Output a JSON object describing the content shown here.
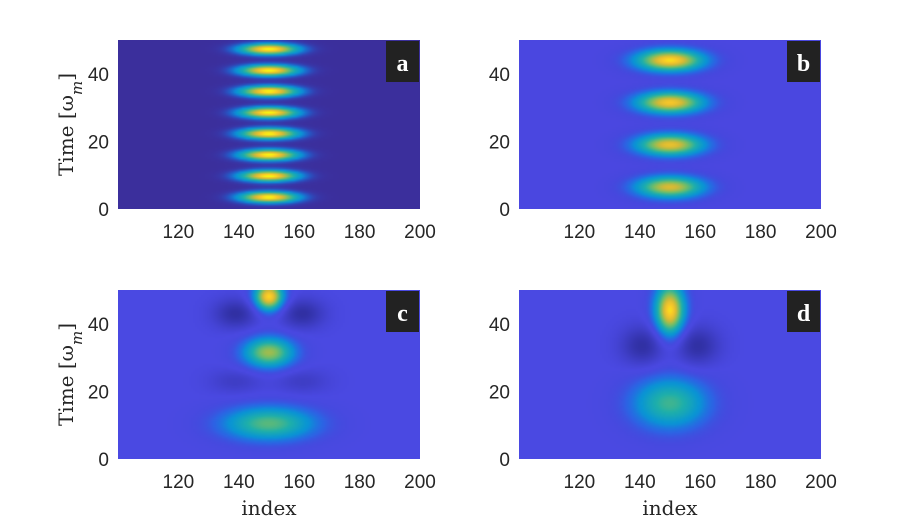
{
  "chart_data": [
    {
      "type": "heatmap",
      "panel_label": "a",
      "xlabel": "",
      "ylabel": "Time [ω",
      "ylabel_sub": "m",
      "ylabel_close": "]",
      "xlim": [
        100,
        200
      ],
      "ylim": [
        0,
        50
      ],
      "xticks": [
        120,
        140,
        160,
        180,
        200
      ],
      "yticks": [
        0,
        20,
        40
      ],
      "colormap": "parula",
      "background_color": "#3b2f9c",
      "features": [
        {
          "x": 150,
          "y": 3.5,
          "sx": 7,
          "sy": 1.2,
          "amp": 1.0
        },
        {
          "x": 150,
          "y": 9.8,
          "sx": 7,
          "sy": 1.2,
          "amp": 1.0
        },
        {
          "x": 150,
          "y": 16.0,
          "sx": 7,
          "sy": 1.2,
          "amp": 1.0
        },
        {
          "x": 150,
          "y": 22.3,
          "sx": 7,
          "sy": 1.2,
          "amp": 1.0
        },
        {
          "x": 150,
          "y": 28.5,
          "sx": 7,
          "sy": 1.2,
          "amp": 1.0
        },
        {
          "x": 150,
          "y": 34.8,
          "sx": 7,
          "sy": 1.2,
          "amp": 1.0
        },
        {
          "x": 150,
          "y": 41.0,
          "sx": 7,
          "sy": 1.2,
          "amp": 1.0
        },
        {
          "x": 150,
          "y": 47.3,
          "sx": 7,
          "sy": 1.2,
          "amp": 1.0
        }
      ]
    },
    {
      "type": "heatmap",
      "panel_label": "b",
      "xlabel": "",
      "ylabel": "",
      "xlim": [
        100,
        200
      ],
      "ylim": [
        0,
        50
      ],
      "xticks": [
        120,
        140,
        160,
        180,
        200
      ],
      "yticks": [
        0,
        20,
        40
      ],
      "colormap": "parula",
      "background_color": "#4a47e0",
      "features": [
        {
          "x": 150,
          "y": 6.5,
          "sx": 8,
          "sy": 2.3,
          "amp": 0.82
        },
        {
          "x": 150,
          "y": 19.0,
          "sx": 8,
          "sy": 2.3,
          "amp": 0.86
        },
        {
          "x": 150,
          "y": 31.5,
          "sx": 8,
          "sy": 2.3,
          "amp": 0.9
        },
        {
          "x": 150,
          "y": 44.0,
          "sx": 8,
          "sy": 2.3,
          "amp": 0.95
        }
      ]
    },
    {
      "type": "heatmap",
      "panel_label": "c",
      "xlabel": "index",
      "ylabel": "Time [ω",
      "ylabel_sub": "m",
      "ylabel_close": "]",
      "xlim": [
        100,
        200
      ],
      "ylim": [
        0,
        50
      ],
      "xticks": [
        120,
        140,
        160,
        180,
        200
      ],
      "yticks": [
        0,
        20,
        40
      ],
      "colormap": "parula",
      "background_color": "#4a49e2",
      "features": [
        {
          "x": 150,
          "y": 10.5,
          "sx": 11,
          "sy": 3.6,
          "amp": 0.6
        },
        {
          "x": 150,
          "y": 31.5,
          "sx": 6,
          "sy": 3.2,
          "amp": 0.72
        },
        {
          "x": 150,
          "y": 48.0,
          "sx": 3.5,
          "sy": 3.0,
          "amp": 0.95
        },
        {
          "x": 139,
          "y": 43.0,
          "sx": 5,
          "sy": 3.0,
          "amp": -0.3
        },
        {
          "x": 161,
          "y": 43.0,
          "sx": 5,
          "sy": 3.0,
          "amp": -0.3
        },
        {
          "x": 139,
          "y": 23.0,
          "sx": 6,
          "sy": 2.5,
          "amp": -0.14
        },
        {
          "x": 161,
          "y": 23.0,
          "sx": 6,
          "sy": 2.5,
          "amp": -0.14
        }
      ]
    },
    {
      "type": "heatmap",
      "panel_label": "d",
      "xlabel": "index",
      "ylabel": "",
      "xlim": [
        100,
        200
      ],
      "ylim": [
        0,
        50
      ],
      "xticks": [
        120,
        140,
        160,
        180,
        200
      ],
      "yticks": [
        0,
        20,
        40
      ],
      "colormap": "parula",
      "background_color": "#4a49e2",
      "features": [
        {
          "x": 150,
          "y": 16.5,
          "sx": 9,
          "sy": 5.5,
          "amp": 0.55
        },
        {
          "x": 150,
          "y": 44.0,
          "sx": 3.5,
          "sy": 5.5,
          "amp": 0.95
        },
        {
          "x": 141,
          "y": 33.5,
          "sx": 5,
          "sy": 4.0,
          "amp": -0.3
        },
        {
          "x": 159,
          "y": 33.5,
          "sx": 5,
          "sy": 4.0,
          "amp": -0.3
        }
      ]
    }
  ]
}
